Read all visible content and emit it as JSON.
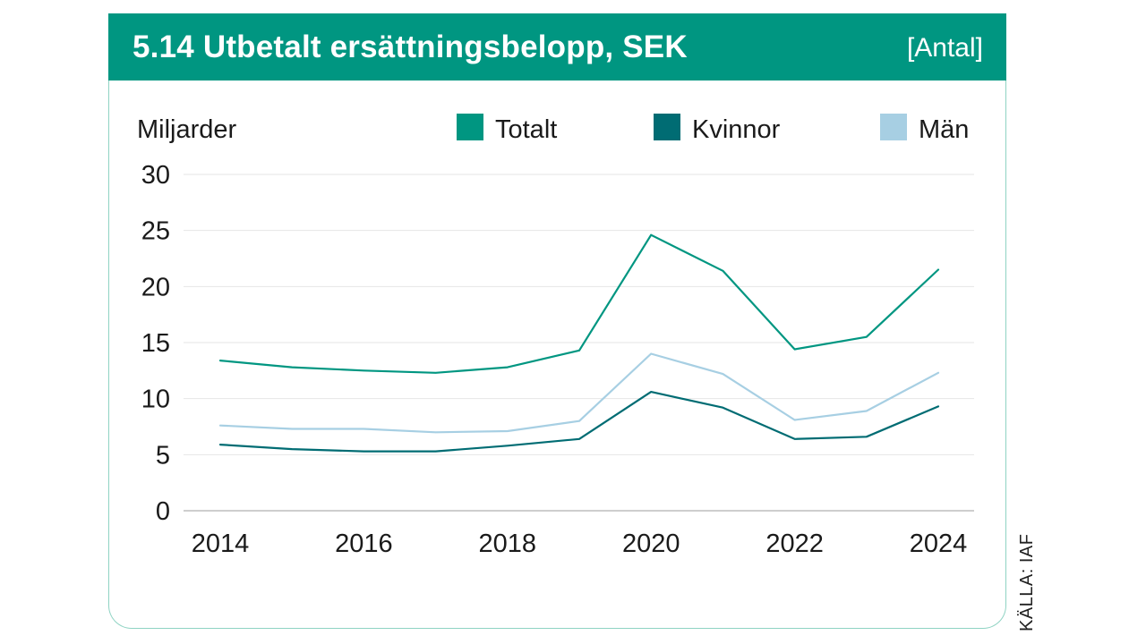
{
  "header": {
    "title": "5.14  Utbetalt ersättningsbelopp, SEK",
    "unit": "[Antal]"
  },
  "source": "KÄLLA: IAF",
  "colors": {
    "header_bg": "#009681",
    "totalt": "#009681",
    "kvinnor": "#006c73",
    "man": "#a7cfe3",
    "grid": "#e6e6e6"
  },
  "chart_data": {
    "type": "line",
    "ylabel": "Miljarder",
    "xlabel": "",
    "ylim": [
      0,
      30
    ],
    "yticks": [
      "0",
      "5",
      "10",
      "15",
      "20",
      "25",
      "30"
    ],
    "xticks": [
      "2014",
      "2016",
      "2018",
      "2020",
      "2022",
      "2024"
    ],
    "x": [
      2014,
      2015,
      2016,
      2017,
      2018,
      2019,
      2020,
      2021,
      2022,
      2023,
      2024
    ],
    "grid": true,
    "legend_position": "top",
    "series": [
      {
        "name": "Totalt",
        "color_key": "totalt",
        "values": [
          13.4,
          12.8,
          12.5,
          12.3,
          12.8,
          14.3,
          24.6,
          21.4,
          14.4,
          15.5,
          21.5
        ]
      },
      {
        "name": "Kvinnor",
        "color_key": "kvinnor",
        "values": [
          5.9,
          5.5,
          5.3,
          5.3,
          5.8,
          6.4,
          10.6,
          9.2,
          6.4,
          6.6,
          9.3
        ]
      },
      {
        "name": "Män",
        "color_key": "man",
        "values": [
          7.6,
          7.3,
          7.3,
          7.0,
          7.1,
          8.0,
          14.0,
          12.2,
          8.1,
          8.9,
          12.3
        ]
      }
    ]
  }
}
